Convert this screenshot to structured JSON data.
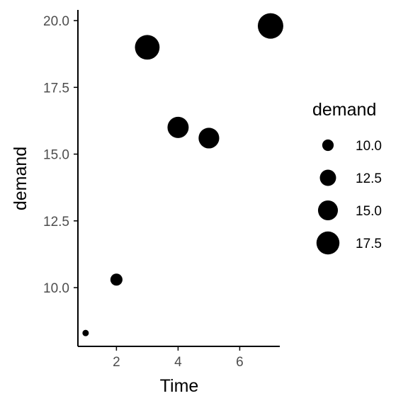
{
  "chart_data": {
    "type": "scatter",
    "title": "",
    "xlabel": "Time",
    "ylabel": "demand",
    "xlim": [
      0.75,
      7.3
    ],
    "ylim": [
      7.8,
      20.4
    ],
    "x_ticks": [
      2,
      4,
      6
    ],
    "y_ticks": [
      10.0,
      12.5,
      15.0,
      17.5,
      20.0
    ],
    "x_tick_labels": [
      "2",
      "4",
      "6"
    ],
    "y_tick_labels": [
      "10.0",
      "12.5",
      "15.0",
      "17.5",
      "20.0"
    ],
    "grid": false,
    "size_variable": "demand",
    "series": [
      {
        "points": [
          {
            "x": 1,
            "y": 8.3
          },
          {
            "x": 2,
            "y": 10.3
          },
          {
            "x": 3,
            "y": 19.0
          },
          {
            "x": 4,
            "y": 16.0
          },
          {
            "x": 5,
            "y": 15.6
          },
          {
            "x": 7,
            "y": 19.8
          }
        ]
      }
    ],
    "legend": {
      "title": "demand",
      "position": "right",
      "entries": [
        {
          "label": "10.0",
          "value": 10.0
        },
        {
          "label": "12.5",
          "value": 12.5
        },
        {
          "label": "15.0",
          "value": 15.0
        },
        {
          "label": "17.5",
          "value": 17.5
        }
      ]
    },
    "colors": {
      "point": "#000000",
      "axis": "#000000",
      "tick_label": "#4d4d4d"
    }
  }
}
